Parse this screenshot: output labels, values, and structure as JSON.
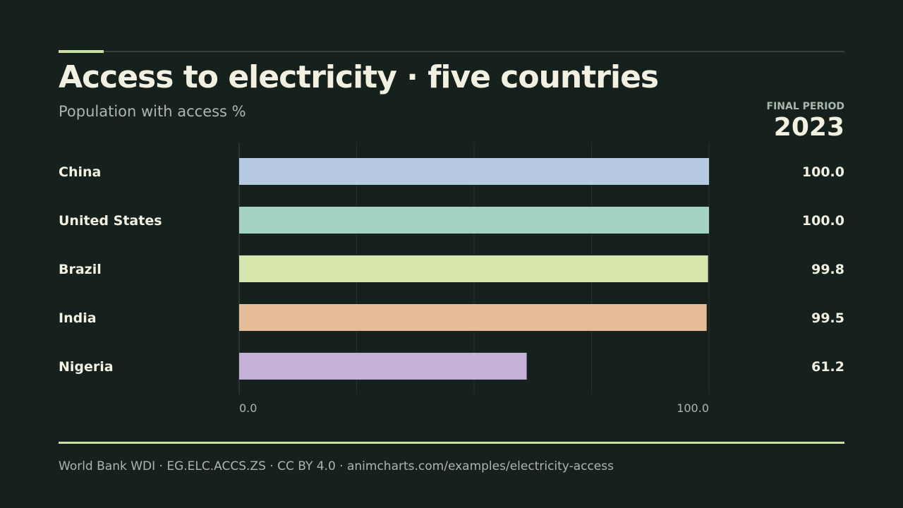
{
  "header": {
    "title": "Access to electricity · five countries",
    "subtitle": "Population with access %",
    "period_label": "FINAL PERIOD",
    "period_value": "2023"
  },
  "footer": {
    "source": "World Bank WDI · EG.ELC.ACCS.ZS · CC BY 4.0 · animcharts.com/examples/electricity-access"
  },
  "colors": {
    "background": "#16211e",
    "accent": "#c8e0a4",
    "text": "#f2f0e0",
    "muted": "#a9b7ad",
    "grid": "#27332f"
  },
  "chart_data": {
    "type": "bar",
    "orientation": "horizontal",
    "categories": [
      "China",
      "United States",
      "Brazil",
      "India",
      "Nigeria"
    ],
    "values": [
      100.0,
      100.0,
      99.8,
      99.5,
      61.2
    ],
    "value_labels": [
      "100.0",
      "100.0",
      "99.8",
      "99.5",
      "61.2"
    ],
    "bar_colors": [
      "#b6cae2",
      "#a3d2c0",
      "#d6e6ad",
      "#e6bc98",
      "#c4b1d8"
    ],
    "xlim": [
      0,
      100
    ],
    "x_tick_values": [
      0,
      100
    ],
    "x_tick_labels": [
      "0.0",
      "100.0"
    ],
    "grid": true,
    "title": "Access to electricity · five countries",
    "subtitle": "Population with access %"
  }
}
